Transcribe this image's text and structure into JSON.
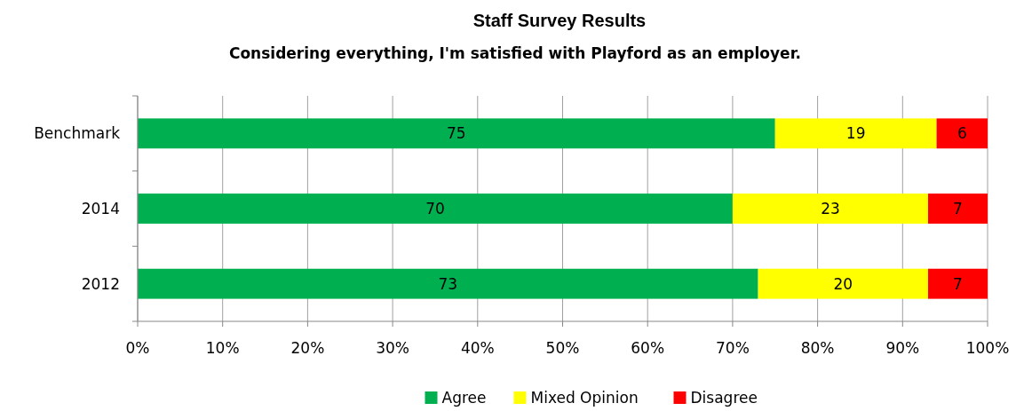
{
  "chart_data": {
    "type": "bar",
    "orientation": "horizontal",
    "stacked": true,
    "title": "Staff Survey Results",
    "subtitle": "Considering everything, I'm satisfied with Playford as an employer.",
    "categories": [
      "Benchmark",
      "2014",
      "2012"
    ],
    "series": [
      {
        "name": "Agree",
        "color": "#00b050",
        "values": [
          75,
          70,
          73
        ]
      },
      {
        "name": "Mixed Opinion",
        "color": "#ffff00",
        "values": [
          19,
          23,
          20
        ]
      },
      {
        "name": "Disagree",
        "color": "#ff0000",
        "values": [
          6,
          7,
          7
        ]
      }
    ],
    "xlim": [
      0,
      100
    ],
    "xticks": [
      {
        "value": 0,
        "label": "0%"
      },
      {
        "value": 10,
        "label": "10%"
      },
      {
        "value": 20,
        "label": "20%"
      },
      {
        "value": 30,
        "label": "30%"
      },
      {
        "value": 40,
        "label": "40%"
      },
      {
        "value": 50,
        "label": "50%"
      },
      {
        "value": 60,
        "label": "60%"
      },
      {
        "value": 70,
        "label": "70%"
      },
      {
        "value": 80,
        "label": "80%"
      },
      {
        "value": 90,
        "label": "90%"
      },
      {
        "value": 100,
        "label": "100%"
      }
    ],
    "grid": "x",
    "legend": "bottom",
    "data_labels": true
  }
}
